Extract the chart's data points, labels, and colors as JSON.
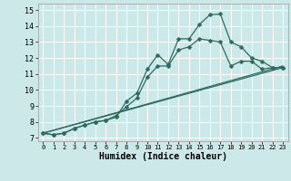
{
  "xlabel": "Humidex (Indice chaleur)",
  "bg_color": "#cde8e8",
  "line_color": "#2d6b62",
  "grid_color": "#ffffff",
  "xlim": [
    -0.5,
    23.5
  ],
  "ylim": [
    6.8,
    15.4
  ],
  "yticks": [
    7,
    8,
    9,
    10,
    11,
    12,
    13,
    14,
    15
  ],
  "xticks": [
    0,
    1,
    2,
    3,
    4,
    5,
    6,
    7,
    8,
    9,
    10,
    11,
    12,
    13,
    14,
    15,
    16,
    17,
    18,
    19,
    20,
    21,
    22,
    23
  ],
  "line1_x": [
    0,
    1,
    2,
    3,
    4,
    5,
    6,
    7,
    8,
    9,
    10,
    11,
    12,
    13,
    14,
    15,
    16,
    17,
    18,
    19,
    20,
    21,
    22,
    23
  ],
  "line1_y": [
    7.3,
    7.2,
    7.3,
    7.6,
    7.8,
    8.0,
    8.1,
    8.3,
    9.3,
    9.8,
    11.3,
    12.2,
    11.6,
    13.2,
    13.2,
    14.1,
    14.7,
    14.75,
    13.0,
    12.7,
    12.0,
    11.8,
    11.4,
    11.4
  ],
  "line2_x": [
    0,
    1,
    2,
    3,
    4,
    5,
    6,
    7,
    8,
    9,
    10,
    11,
    12,
    13,
    14,
    15,
    16,
    17,
    18,
    19,
    20,
    21,
    22,
    23
  ],
  "line2_y": [
    7.3,
    7.2,
    7.3,
    7.6,
    7.8,
    8.0,
    8.1,
    8.4,
    8.95,
    9.5,
    10.8,
    11.5,
    11.5,
    12.5,
    12.7,
    13.2,
    13.1,
    13.0,
    11.5,
    11.8,
    11.8,
    11.3,
    11.4,
    11.4
  ],
  "line3_x": [
    0,
    23
  ],
  "line3_y": [
    7.3,
    11.4
  ],
  "line4_x": [
    0,
    23
  ],
  "line4_y": [
    7.3,
    11.4
  ]
}
